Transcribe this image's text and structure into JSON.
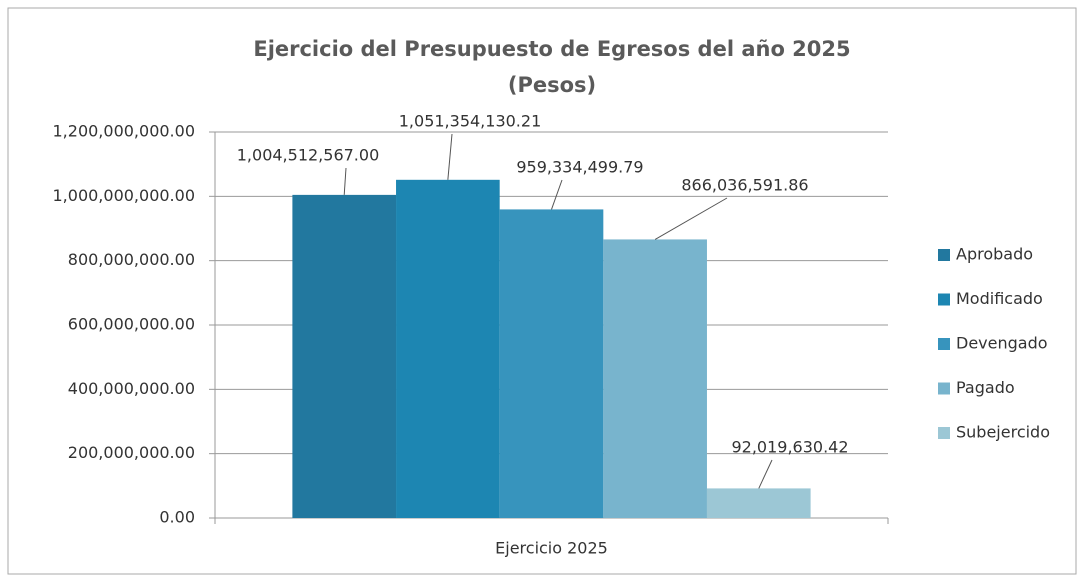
{
  "chart_data": {
    "type": "bar",
    "title": [
      "Ejercicio del Presupuesto de Egresos del año 2025",
      "(Pesos)"
    ],
    "categories": [
      "Ejercicio 2025"
    ],
    "series": [
      {
        "name": "Aprobado",
        "color": "#22789f",
        "values": [
          1004512567.0
        ],
        "value_labels": [
          "1,004,512,567.00"
        ]
      },
      {
        "name": "Modificado",
        "color": "#1d86b2",
        "values": [
          1051354130.21
        ],
        "value_labels": [
          "1,051,354,130.21"
        ]
      },
      {
        "name": "Devengado",
        "color": "#3794bd",
        "values": [
          959334499.79
        ],
        "value_labels": [
          "959,334,499.79"
        ]
      },
      {
        "name": "Pagado",
        "color": "#78b4cd",
        "values": [
          866036591.86
        ],
        "value_labels": [
          "866,036,591.86"
        ]
      },
      {
        "name": "Subejercido",
        "color": "#9cc7d5",
        "values": [
          92019630.42
        ],
        "value_labels": [
          "92,019,630.42"
        ]
      }
    ],
    "ylim": [
      0,
      1200000000
    ],
    "yticks": [
      {
        "value": 0,
        "label": "0.00"
      },
      {
        "value": 200000000,
        "label": "200,000,000.00"
      },
      {
        "value": 400000000,
        "label": "400,000,000.00"
      },
      {
        "value": 600000000,
        "label": "600,000,000.00"
      },
      {
        "value": 800000000,
        "label": "800,000,000.00"
      },
      {
        "value": 1000000000,
        "label": "1,000,000,000.00"
      },
      {
        "value": 1200000000,
        "label": "1,200,000,000.00"
      }
    ],
    "grid": true,
    "legend": "right"
  }
}
